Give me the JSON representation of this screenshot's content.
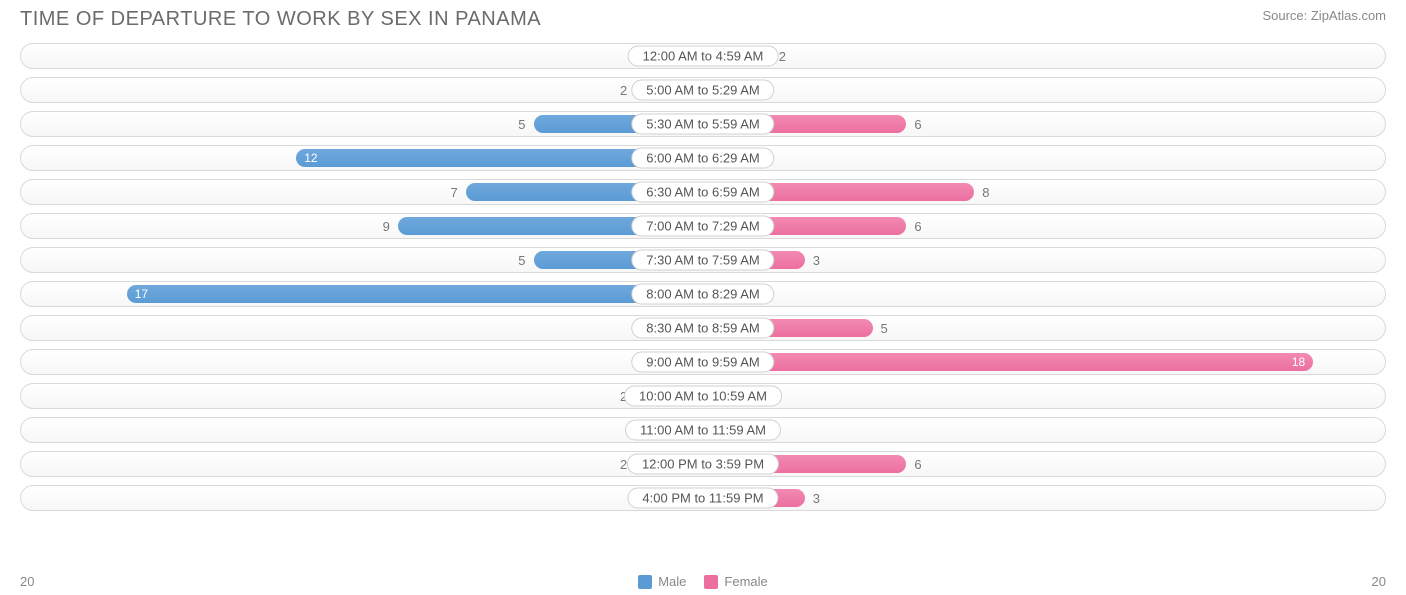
{
  "title": "TIME OF DEPARTURE TO WORK BY SEX IN PANAMA",
  "source": "Source: ZipAtlas.com",
  "axis_max": 20,
  "axis_label_left": "20",
  "axis_label_right": "20",
  "colors": {
    "male_bar": "#6fa8dc",
    "male_bar_dark": "#5b9bd5",
    "female_bar": "#f28ab2",
    "female_bar_dark": "#ec6fa0",
    "row_border": "#d9d9d9",
    "text": "#6b6b6b",
    "value_text": "#777777",
    "background": "#ffffff"
  },
  "legend": {
    "male_label": "Male",
    "female_label": "Female"
  },
  "min_bar_pct": 8,
  "label_inside_threshold": 10,
  "rows": [
    {
      "label": "12:00 AM to 4:59 AM",
      "male": 1,
      "female": 2
    },
    {
      "label": "5:00 AM to 5:29 AM",
      "male": 2,
      "female": 0
    },
    {
      "label": "5:30 AM to 5:59 AM",
      "male": 5,
      "female": 6
    },
    {
      "label": "6:00 AM to 6:29 AM",
      "male": 12,
      "female": 1
    },
    {
      "label": "6:30 AM to 6:59 AM",
      "male": 7,
      "female": 8
    },
    {
      "label": "7:00 AM to 7:29 AM",
      "male": 9,
      "female": 6
    },
    {
      "label": "7:30 AM to 7:59 AM",
      "male": 5,
      "female": 3
    },
    {
      "label": "8:00 AM to 8:29 AM",
      "male": 17,
      "female": 0
    },
    {
      "label": "8:30 AM to 8:59 AM",
      "male": 0,
      "female": 5
    },
    {
      "label": "9:00 AM to 9:59 AM",
      "male": 0,
      "female": 18
    },
    {
      "label": "10:00 AM to 10:59 AM",
      "male": 2,
      "female": 0
    },
    {
      "label": "11:00 AM to 11:59 AM",
      "male": 0,
      "female": 0
    },
    {
      "label": "12:00 PM to 3:59 PM",
      "male": 2,
      "female": 6
    },
    {
      "label": "4:00 PM to 11:59 PM",
      "male": 0,
      "female": 3
    }
  ]
}
